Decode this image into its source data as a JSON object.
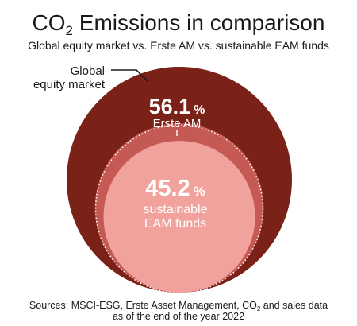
{
  "chart_data": {
    "type": "bubble",
    "title_main": "CO",
    "title_sub": "2",
    "title_rest": " Emissions in comparison",
    "subtitle": "Global equity market vs. Erste AM vs. sustainable EAM funds",
    "series": [
      {
        "name": "Global equity market",
        "value": 100,
        "value_label": "",
        "color": "#7a2118"
      },
      {
        "name": "Erste AM",
        "value": 56.1,
        "value_label": "56.1",
        "unit": "%",
        "color": "#c55a55"
      },
      {
        "name": "sustainable EAM funds",
        "value": 45.2,
        "value_label": "45.2",
        "unit": "%",
        "color": "#f2a29c"
      }
    ],
    "label_global_line1": "Global",
    "label_global_line2": "equity market",
    "label_erste": "Erste AM",
    "label_sust_line1": "sustainable",
    "label_sust_line2": "EAM funds",
    "source_line1_a": "Sources: MSCI-ESG, Erste Asset Management, CO",
    "source_line1_sub": "2",
    "source_line1_b": " and sales data",
    "source_line2": "as of the end of the year 2022"
  }
}
